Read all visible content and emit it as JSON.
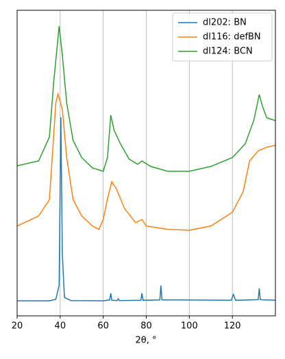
{
  "chart_data": {
    "type": "line",
    "xlabel": "2θ, °",
    "xlim": [
      20,
      140
    ],
    "xticks": [
      20,
      40,
      60,
      80,
      100,
      120
    ],
    "ylim": [
      0,
      100
    ],
    "grid": "x",
    "legend": "upper right",
    "series": [
      {
        "name": "dl202: BN",
        "color": "#1f77b4",
        "x": [
          20,
          35,
          38,
          39.5,
          40.3,
          41,
          42,
          45,
          60,
          63,
          63.5,
          64,
          66.5,
          67,
          67.5,
          77.5,
          78,
          78.5,
          86.3,
          86.8,
          87.3,
          95,
          119.5,
          120.5,
          121.5,
          132,
          132.5,
          133,
          140
        ],
        "values": [
          4.9,
          4.9,
          5.4,
          10,
          65,
          20,
          6,
          5,
          4.9,
          5.2,
          7.4,
          5.1,
          5.0,
          5.6,
          5.0,
          5.1,
          7.4,
          5.1,
          5.2,
          9.9,
          5.2,
          5.2,
          5.1,
          7.0,
          5.1,
          5.3,
          9.0,
          5.3,
          5.1
        ]
      },
      {
        "name": "dl116: defBN",
        "color": "#ff7f0e",
        "x": [
          20,
          30,
          35,
          38,
          39,
          41,
          43,
          46,
          50,
          55,
          58,
          60,
          62,
          64,
          66,
          70,
          75,
          78,
          80,
          90,
          100,
          110,
          120,
          125,
          128,
          132,
          136,
          140
        ],
        "values": [
          29.4,
          32.7,
          38,
          69.7,
          72.6,
          67.5,
          51.8,
          38,
          32.7,
          29.4,
          28.3,
          31.6,
          38.3,
          43.9,
          41.7,
          35,
          30.5,
          31.5,
          29.4,
          28.3,
          28,
          29.4,
          33.9,
          40.6,
          50.7,
          54,
          55.2,
          55.8
        ]
      },
      {
        "name": "dl124: BCN",
        "color": "#2ca02c",
        "x": [
          20,
          30,
          35,
          37,
          39.5,
          41,
          43,
          46,
          50,
          55,
          60,
          62,
          63.5,
          65,
          68,
          72,
          76,
          78,
          82,
          90,
          100,
          110,
          120,
          126,
          130,
          132.5,
          134,
          136,
          140
        ],
        "values": [
          49.1,
          50.7,
          58.5,
          76.5,
          94.8,
          85.4,
          69.7,
          57.4,
          51.8,
          48.4,
          47.3,
          51.8,
          65.7,
          60.8,
          56.3,
          51.3,
          49.6,
          50.7,
          48.9,
          47.3,
          47.3,
          48.9,
          51.8,
          56.3,
          64.1,
          72.4,
          68.6,
          64.8,
          63.9
        ]
      }
    ]
  }
}
